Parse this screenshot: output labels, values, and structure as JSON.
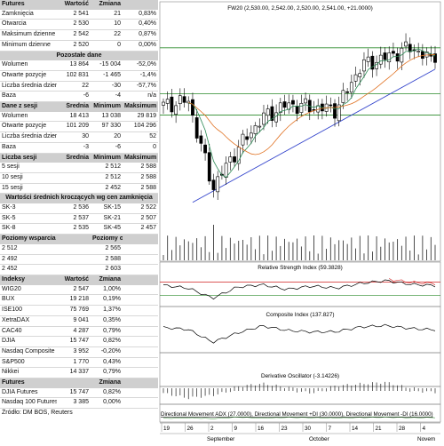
{
  "left_panel": {
    "sections": [
      {
        "header": [
          "Futures",
          "Wartość",
          "Zmiana",
          ""
        ],
        "rows": [
          [
            "Zamknięcia",
            "2 541",
            "21",
            "0,83%"
          ],
          [
            "Otwarcia",
            "2 530",
            "10",
            "0,40%"
          ],
          [
            "Maksimum dzienne",
            "2 542",
            "22",
            "0,87%"
          ],
          [
            "Minimum dzienne",
            "2 520",
            "0",
            "0,00%"
          ]
        ]
      },
      {
        "header": [
          "Pozostałe dane",
          "",
          "",
          ""
        ],
        "rows": [
          [
            "Wolumen",
            "13 864",
            "-15 004",
            "-52,0%"
          ],
          [
            "Otwarte pozycje",
            "102 831",
            "-1 465",
            "-1,4%"
          ],
          [
            "Liczba średnia dzienna",
            "22",
            "-30",
            "-57,7%"
          ],
          [
            "Baza",
            "-6",
            "-4",
            "n/a"
          ]
        ]
      },
      {
        "header": [
          "Dane z sesji",
          "Średnia",
          "Minimum",
          "Maksimum"
        ],
        "rows": [
          [
            "Wolumen",
            "18 413",
            "13 038",
            "29 819"
          ],
          [
            "Otwarte pozycje",
            "101 209",
            "97 330",
            "104 296"
          ],
          [
            "Liczba średnia dzienna",
            "30",
            "20",
            "52"
          ],
          [
            "Baza",
            "-3",
            "-6",
            "0"
          ]
        ]
      },
      {
        "header": [
          "Liczba sesji",
          "Średnia",
          "Minimum",
          "Maksimum"
        ],
        "rows": [
          [
            "5 sesji",
            "",
            "2 512",
            "2 588"
          ],
          [
            "10 sesji",
            "",
            "2 512",
            "2 588"
          ],
          [
            "15 sesji",
            "",
            "2 452",
            "2 588"
          ]
        ]
      },
      {
        "header": [
          "Wartości średnich kroczących wg cen zamknięcia",
          "",
          "",
          ""
        ],
        "rows": [
          [
            "SK-3",
            "2 536",
            "SK-15",
            "2 522"
          ],
          [
            "SK-5",
            "2 537",
            "SK-21",
            "2 507"
          ],
          [
            "SK-8",
            "2 535",
            "SK-45",
            "2 457"
          ]
        ]
      },
      {
        "header": [
          "Poziomy wsparcia",
          "",
          "Poziomy oporu",
          ""
        ],
        "rows": [
          [
            "2 512",
            "",
            "2 565",
            ""
          ],
          [
            "2 492",
            "",
            "2 588",
            ""
          ],
          [
            "2 452",
            "",
            "2 603",
            ""
          ]
        ]
      },
      {
        "header": [
          "Indeksy",
          "Wartość",
          "Zmiana",
          ""
        ],
        "rows": [
          [
            "WIG20",
            "2 547",
            "1,00%",
            ""
          ],
          [
            "BUX",
            "19 218",
            "0,19%",
            ""
          ],
          [
            "ISE100",
            "75 769",
            "1,37%",
            ""
          ],
          [
            "XetraDAX",
            "9 041",
            "0,35%",
            ""
          ],
          [
            "CAC40",
            "4 287",
            "0,79%",
            ""
          ],
          [
            "DJIA",
            "15 747",
            "0,82%",
            ""
          ],
          [
            "Nasdaq Composite",
            "3 952",
            "-0,20%",
            ""
          ],
          [
            "S&P500",
            "1 770",
            "0,43%",
            ""
          ],
          [
            "Nikkei",
            "14 337",
            "0,79%",
            ""
          ]
        ]
      },
      {
        "header": [
          "Futures",
          "",
          "Zmiana",
          ""
        ],
        "rows": [
          [
            "DJIA Futures",
            "15 747",
            "0,82%",
            ""
          ],
          [
            "Nasdaq 100 Futures",
            "3 385",
            "0,00%",
            ""
          ]
        ]
      }
    ],
    "source": "Źródło: DM BOŚ, Reuters"
  },
  "chart": {
    "price_title": "FW20 (2,530.00, 2,542.00, 2,520.00, 2,541.00, +21.0000)",
    "rsi_title": "Relative Strength Index (59.3828)",
    "composite_title": "Composite Index (137.827)",
    "derivative_title": "Derivative Oscillator (-3.14226)",
    "dmi_title": "Directional Movement ADX (27.0000), Directional Movement +DI (30.0000), Directional Movement -DI (16.0000)",
    "date_ticks": [
      "19",
      "26",
      "2",
      "9",
      "16",
      "23",
      "30",
      "7",
      "14",
      "21",
      "28",
      "4"
    ],
    "month_labels": [
      "September",
      "October",
      "Novem"
    ],
    "colors": {
      "up_candle": "#ffffff",
      "down_candle": "#000000",
      "sma_short": "#2e8b57",
      "sma_long": "#e07020",
      "trendline": "#3344cc",
      "levels": "#2a8a2a",
      "rsi_red": "#d02020"
    }
  },
  "chart_data": {
    "type": "line",
    "title": "FW20 (2,530.00, 2,542.00, 2,520.00, 2,541.00, +21.0000)",
    "x": [
      "19",
      "26",
      "2",
      "9",
      "16",
      "23",
      "30",
      "7",
      "14",
      "21",
      "28",
      "4"
    ],
    "series": [
      {
        "name": "FW20",
        "values": [
          2470,
          2479,
          2336,
          2400,
          2450,
          2472,
          2468,
          2464,
          2536,
          2549,
          2566,
          2541
        ]
      },
      {
        "name": "Relative Strength Index",
        "values": [
          60,
          52,
          22,
          55,
          62,
          48,
          58,
          52,
          66,
          74,
          63,
          59.38
        ]
      },
      {
        "name": "Composite Index",
        "values": [
          152,
          140,
          60,
          118,
          162,
          134,
          124,
          126,
          156,
          164,
          146,
          137.83
        ]
      },
      {
        "name": "Derivative Oscillator",
        "values": [
          -6,
          -18,
          -11,
          4,
          12,
          2,
          -5,
          6,
          11,
          15,
          0,
          -3.14
        ]
      }
    ],
    "ylim": [
      2300,
      2620
    ]
  }
}
